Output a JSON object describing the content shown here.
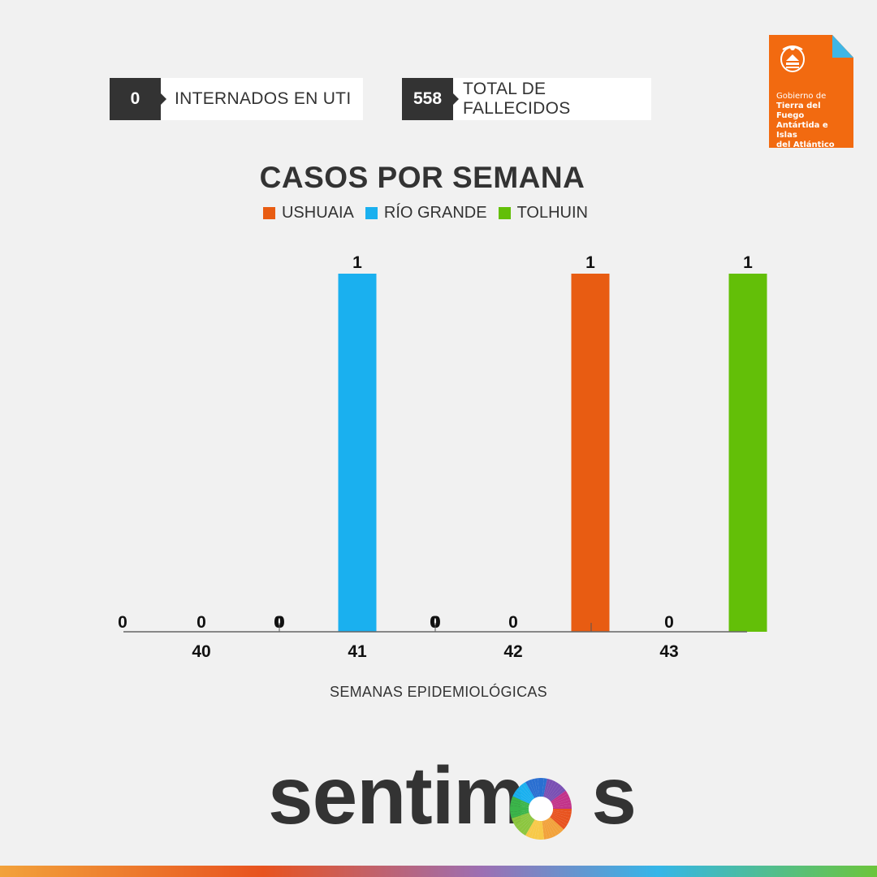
{
  "stats": {
    "uti": {
      "value": "0",
      "label": "INTERNADOS EN UTI"
    },
    "fallecidos": {
      "value": "558",
      "label": "TOTAL DE FALLECIDOS"
    }
  },
  "logo": {
    "line1": "Gobierno de",
    "line2": "Tierra del Fuego",
    "line3": "Antártida e Islas",
    "line4": "del Atlántico Sur"
  },
  "brand": {
    "text_before": "sentim",
    "text_after": "s"
  },
  "chart_data": {
    "type": "bar",
    "title": "CASOS POR SEMANA",
    "xlabel": "SEMANAS EPIDEMIOLÓGICAS",
    "ylabel": "",
    "categories": [
      "40",
      "41",
      "42",
      "43"
    ],
    "series": [
      {
        "name": "USHUAIA",
        "color": "#e85c12",
        "values": [
          0,
          0,
          0,
          1
        ]
      },
      {
        "name": "RÍO GRANDE",
        "color": "#1ab0ef",
        "values": [
          0,
          1,
          0,
          0
        ]
      },
      {
        "name": "TOLHUIN",
        "color": "#63bf08",
        "values": [
          0,
          0,
          0,
          1
        ]
      }
    ],
    "ylim": [
      0,
      1
    ],
    "grid": false,
    "legend": "top-center"
  }
}
